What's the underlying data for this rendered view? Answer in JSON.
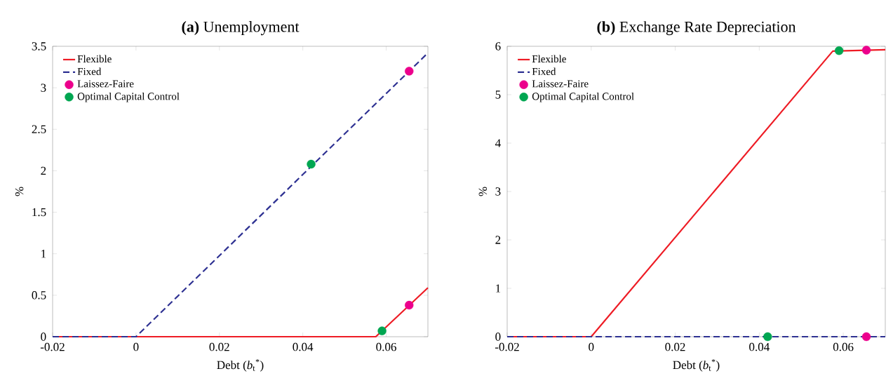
{
  "chart_data": [
    {
      "type": "line",
      "title": "**(a)** Unemployment",
      "xlabel": "Debt (*b*$_{t}$$^{*}$)",
      "ylabel": "%",
      "xlim": [
        -0.02,
        0.07
      ],
      "ylim": [
        0,
        3.5
      ],
      "xticks": [
        -0.02,
        0,
        0.02,
        0.04,
        0.06
      ],
      "yticks": [
        0,
        0.5,
        1,
        1.5,
        2,
        2.5,
        3,
        3.5
      ],
      "legend": "top left",
      "grid": false,
      "series": [
        {
          "name": "Flexible",
          "color": "#ee1c25",
          "line_style": "solid",
          "marker": "none",
          "x": [
            -0.02,
            0,
            0.0575,
            0.07
          ],
          "values": [
            0,
            0,
            0,
            0.59
          ]
        },
        {
          "name": "Fixed",
          "color": "#2e3192",
          "line_style": "dashed",
          "marker": "none",
          "x": [
            -0.02,
            0,
            0.07
          ],
          "values": [
            0,
            0,
            3.42
          ]
        },
        {
          "name": "Laissez-Faire",
          "type": "scatter",
          "color": "#ec008c",
          "marker": "circle",
          "x": [
            0.0655,
            0.0655
          ],
          "values": [
            3.2,
            0.38
          ]
        },
        {
          "name": "Optimal Capital Control",
          "type": "scatter",
          "color": "#00a651",
          "marker": "circle",
          "x": [
            0.042,
            0.059
          ],
          "values": [
            2.08,
            0.07
          ]
        }
      ]
    },
    {
      "type": "line",
      "title": "**(b)** Exchange Rate Depreciation",
      "xlabel": "Debt (*b*$_{t}$$^{*}$)",
      "ylabel": "%",
      "xlim": [
        -0.02,
        0.07
      ],
      "ylim": [
        0,
        6
      ],
      "xticks": [
        -0.02,
        0,
        0.02,
        0.04,
        0.06
      ],
      "yticks": [
        0,
        1,
        2,
        3,
        4,
        5,
        6
      ],
      "legend": "top left",
      "grid": false,
      "series": [
        {
          "name": "Flexible",
          "color": "#ee1c25",
          "line_style": "solid",
          "marker": "none",
          "x": [
            -0.02,
            0,
            0.0575,
            0.07
          ],
          "values": [
            0,
            0,
            5.9,
            5.93
          ]
        },
        {
          "name": "Fixed",
          "color": "#2e3192",
          "line_style": "dashed",
          "marker": "none",
          "x": [
            -0.02,
            0.07
          ],
          "values": [
            0,
            0
          ]
        },
        {
          "name": "Laissez-Faire",
          "type": "scatter",
          "color": "#ec008c",
          "marker": "circle",
          "x": [
            0.0655,
            0.0655
          ],
          "values": [
            5.92,
            0
          ]
        },
        {
          "name": "Optimal Capital Control",
          "type": "scatter",
          "color": "#00a651",
          "marker": "circle",
          "x": [
            0.059,
            0.042
          ],
          "values": [
            5.91,
            0
          ]
        }
      ]
    }
  ]
}
